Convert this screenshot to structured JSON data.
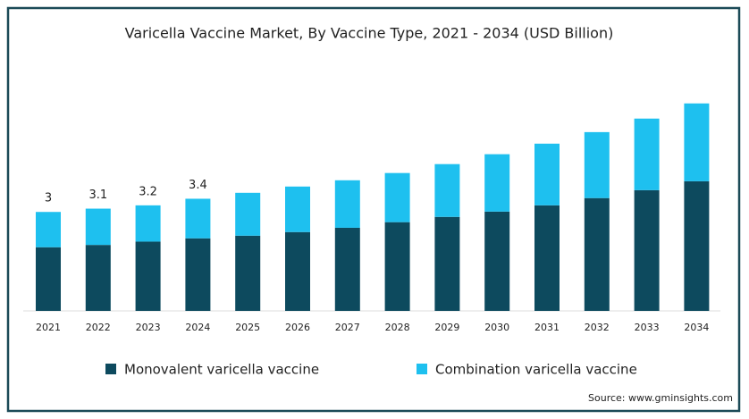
{
  "chart_data": {
    "type": "stacked-bar",
    "title": "Varicella Vaccine Market, By Vaccine Type, 2021 - 2034 (USD Billion)",
    "categories": [
      "2021",
      "2022",
      "2023",
      "2024",
      "2025",
      "2026",
      "2027",
      "2028",
      "2029",
      "2030",
      "2031",
      "2032",
      "2033",
      "2034"
    ],
    "series": [
      {
        "name": "Monovalent varicella vaccine",
        "color": "#0d4a5e",
        "values": [
          1.93,
          2.0,
          2.1,
          2.2,
          2.28,
          2.39,
          2.52,
          2.69,
          2.85,
          3.01,
          3.2,
          3.42,
          3.66,
          3.93
        ]
      },
      {
        "name": "Combination varicella vaccine",
        "color": "#1ec0ef",
        "values": [
          1.07,
          1.1,
          1.1,
          1.2,
          1.3,
          1.38,
          1.44,
          1.49,
          1.6,
          1.74,
          1.87,
          2.0,
          2.17,
          2.36
        ]
      }
    ],
    "total_labels": [
      3,
      3.1,
      3.2,
      3.4,
      null,
      null,
      null,
      null,
      null,
      null,
      null,
      null,
      null,
      null
    ],
    "ylim": [
      0,
      6.5
    ],
    "source": "Source: www.gminsights.com"
  }
}
